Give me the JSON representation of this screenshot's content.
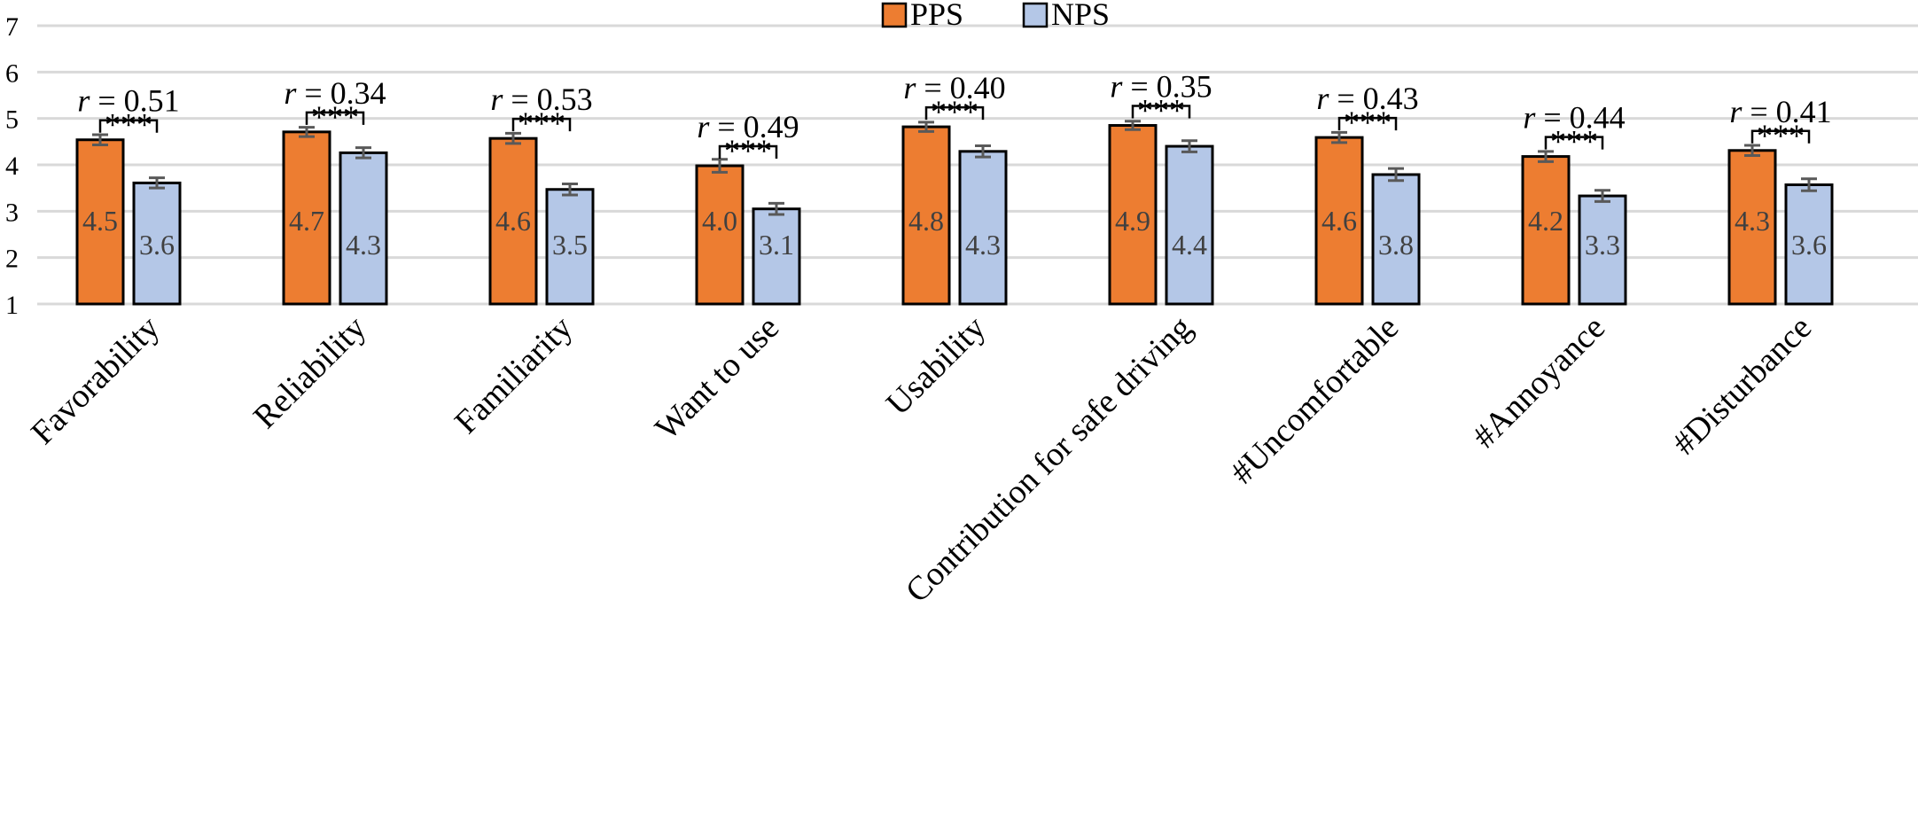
{
  "chart_data": {
    "type": "bar",
    "title": "",
    "xlabel": "",
    "ylabel": "",
    "ylim": [
      1,
      7
    ],
    "yticks": [
      "1",
      "2",
      "3",
      "4",
      "5",
      "6",
      "7"
    ],
    "grid": true,
    "legend_position": "top-center",
    "categories": [
      "Favorability",
      "Reliability",
      "Familiarity",
      "Want to use",
      "Usability",
      "Contribution for safe driving",
      "#Uncomfortable",
      "#Annoyance",
      "#Disturbance"
    ],
    "series": [
      {
        "name": "PPS",
        "color": "#ED7D31",
        "values": [
          4.54,
          4.71,
          4.57,
          3.98,
          4.82,
          4.85,
          4.59,
          4.18,
          4.31
        ],
        "labels": [
          "4.5",
          "4.7",
          "4.6",
          "4.0",
          "4.8",
          "4.9",
          "4.6",
          "4.2",
          "4.3"
        ],
        "errors": [
          0.11,
          0.1,
          0.11,
          0.14,
          0.1,
          0.09,
          0.11,
          0.11,
          0.11
        ]
      },
      {
        "name": "NPS",
        "color": "#B4C7E7",
        "values": [
          3.61,
          4.26,
          3.47,
          3.05,
          4.29,
          4.4,
          3.79,
          3.33,
          3.57
        ],
        "labels": [
          "3.6",
          "4.3",
          "3.5",
          "3.1",
          "4.3",
          "4.4",
          "3.8",
          "3.3",
          "3.6"
        ],
        "errors": [
          0.11,
          0.11,
          0.12,
          0.12,
          0.12,
          0.12,
          0.13,
          0.12,
          0.13
        ]
      }
    ],
    "annotations": [
      {
        "r_prefix": "r",
        "r_text": " = 0.51",
        "sig": "***"
      },
      {
        "r_prefix": "r",
        "r_text": " = 0.34",
        "sig": "***"
      },
      {
        "r_prefix": "r",
        "r_text": " = 0.53",
        "sig": "***"
      },
      {
        "r_prefix": "r",
        "r_text": " = 0.49",
        "sig": "***"
      },
      {
        "r_prefix": "r",
        "r_text": " = 0.40",
        "sig": "***"
      },
      {
        "r_prefix": "r",
        "r_text": " = 0.35",
        "sig": "***"
      },
      {
        "r_prefix": "r",
        "r_text": " = 0.43",
        "sig": "***"
      },
      {
        "r_prefix": "r",
        "r_text": " = 0.44",
        "sig": "***"
      },
      {
        "r_prefix": "r",
        "r_text": " = 0.41",
        "sig": "***"
      }
    ]
  }
}
